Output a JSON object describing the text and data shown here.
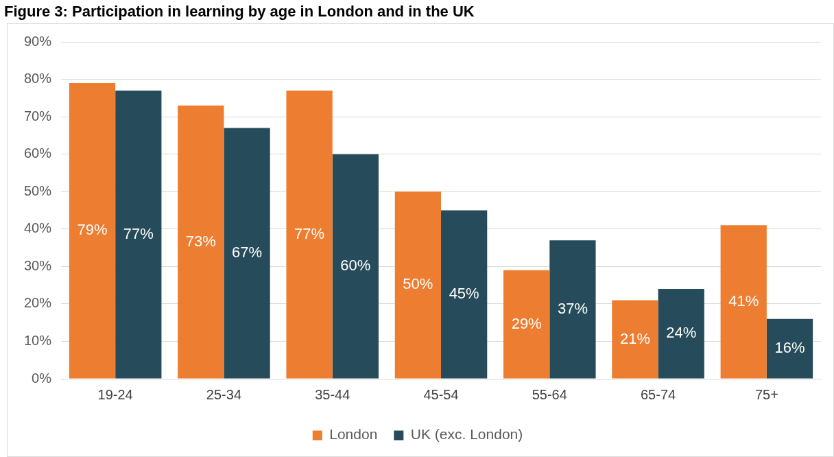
{
  "chart_data": {
    "type": "bar",
    "title": "Figure 3: Participation in learning by age in London and in the UK",
    "categories": [
      "19-24",
      "25-34",
      "35-44",
      "45-54",
      "55-64",
      "65-74",
      "75+"
    ],
    "series": [
      {
        "name": "London",
        "color": "#ed7d31",
        "values": [
          79,
          73,
          77,
          50,
          29,
          21,
          41
        ],
        "value_labels": [
          "79%",
          "73%",
          "77%",
          "50%",
          "29%",
          "21%",
          "41%"
        ]
      },
      {
        "name": "UK (exc. London)",
        "color": "#264b5a",
        "values": [
          77,
          67,
          60,
          45,
          37,
          24,
          16
        ],
        "value_labels": [
          "77%",
          "67%",
          "60%",
          "45%",
          "37%",
          "24%",
          "16%"
        ]
      }
    ],
    "ylim": [
      0,
      90
    ],
    "yticks": [
      {
        "value": 0,
        "label": "0%"
      },
      {
        "value": 10,
        "label": "10%"
      },
      {
        "value": 20,
        "label": "20%"
      },
      {
        "value": 30,
        "label": "30%"
      },
      {
        "value": 40,
        "label": "40%"
      },
      {
        "value": 50,
        "label": "50%"
      },
      {
        "value": 60,
        "label": "60%"
      },
      {
        "value": 70,
        "label": "70%"
      },
      {
        "value": 80,
        "label": "80%"
      },
      {
        "value": 90,
        "label": "90%"
      }
    ],
    "grid": "y",
    "legend": "bottom"
  }
}
